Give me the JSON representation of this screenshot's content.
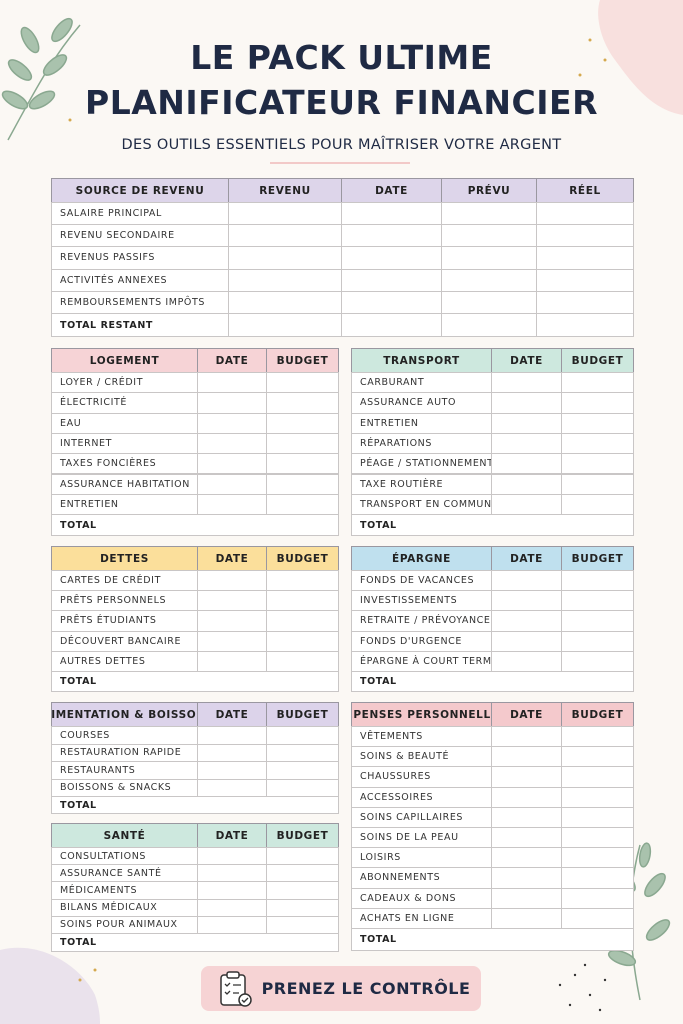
{
  "header": {
    "title_line1": "LE PACK ULTIME",
    "title_line2": "PLANIFICATEUR FINANCIER",
    "subtitle": "DES OUTILS ESSENTIELS POUR MAÎTRISER VOTRE ARGENT"
  },
  "income_table": {
    "headers": [
      "SOURCE DE REVENU",
      "REVENU",
      "DATE",
      "PRÉVU",
      "RÉEL"
    ],
    "rows": [
      "SALAIRE PRINCIPAL",
      "REVENU SECONDAIRE",
      "REVENUS PASSIFS",
      "ACTIVITÉS ANNEXES",
      "REMBOURSEMENTS IMPÔTS"
    ],
    "total": "TOTAL RESTANT"
  },
  "sections": [
    {
      "headers": [
        "LOGEMENT",
        "DATE",
        "BUDGET"
      ],
      "rows": [
        "LOYER / CRÉDIT",
        "ÉLECTRICITÉ",
        "EAU",
        "INTERNET",
        "TAXES FONCIÈRES",
        "ASSURANCE HABITATION",
        "ENTRETIEN"
      ],
      "total": "TOTAL"
    },
    {
      "headers": [
        "TRANSPORT",
        "DATE",
        "BUDGET"
      ],
      "rows": [
        "CARBURANT",
        "ASSURANCE AUTO",
        "ENTRETIEN",
        "RÉPARATIONS",
        "PÉAGE / STATIONNEMENT",
        "TAXE ROUTIÈRE",
        "TRANSPORT EN COMMUN"
      ],
      "total": "TOTAL"
    },
    {
      "headers": [
        "DETTES",
        "DATE",
        "BUDGET"
      ],
      "rows": [
        "CARTES DE CRÉDIT",
        "PRÊTS PERSONNELS",
        "PRÊTS ÉTUDIANTS",
        "DÉCOUVERT BANCAIRE",
        "AUTRES DETTES"
      ],
      "total": "TOTAL"
    },
    {
      "headers": [
        "ÉPARGNE",
        "DATE",
        "BUDGET"
      ],
      "rows": [
        "FONDS DE VACANCES",
        "INVESTISSEMENTS",
        "RETRAITE / PRÉVOYANCE",
        "FONDS D'URGENCE",
        "ÉPARGNE À COURT TERME"
      ],
      "total": "TOTAL"
    },
    {
      "headers": [
        "ALIMENTATION & BOISSONS",
        "DATE",
        "BUDGET"
      ],
      "rows": [
        "COURSES",
        "RESTAURATION RAPIDE",
        "RESTAURANTS",
        "BOISSONS & SNACKS"
      ],
      "total": "TOTAL"
    },
    {
      "headers": [
        "DÉPENSES PERSONNELLES",
        "DATE",
        "BUDGET"
      ],
      "rows": [
        "VÊTEMENTS",
        "SOINS & BEAUTÉ",
        "CHAUSSURES",
        "ACCESSOIRES",
        "SOINS CAPILLAIRES",
        "SOINS DE LA PEAU",
        "LOISIRS",
        "ABONNEMENTS",
        "CADEAUX & DONS",
        "ACHATS EN LIGNE"
      ],
      "total": "TOTAL"
    },
    {
      "headers": [
        "SANTÉ",
        "DATE",
        "BUDGET"
      ],
      "rows": [
        "CONSULTATIONS",
        "ASSURANCE SANTÉ",
        "MÉDICAMENTS",
        "BILANS MÉDICAUX",
        "SOINS POUR ANIMAUX"
      ],
      "total": "TOTAL"
    }
  ],
  "footer": {
    "button": "PRENEZ LE CONTRÔLE"
  }
}
